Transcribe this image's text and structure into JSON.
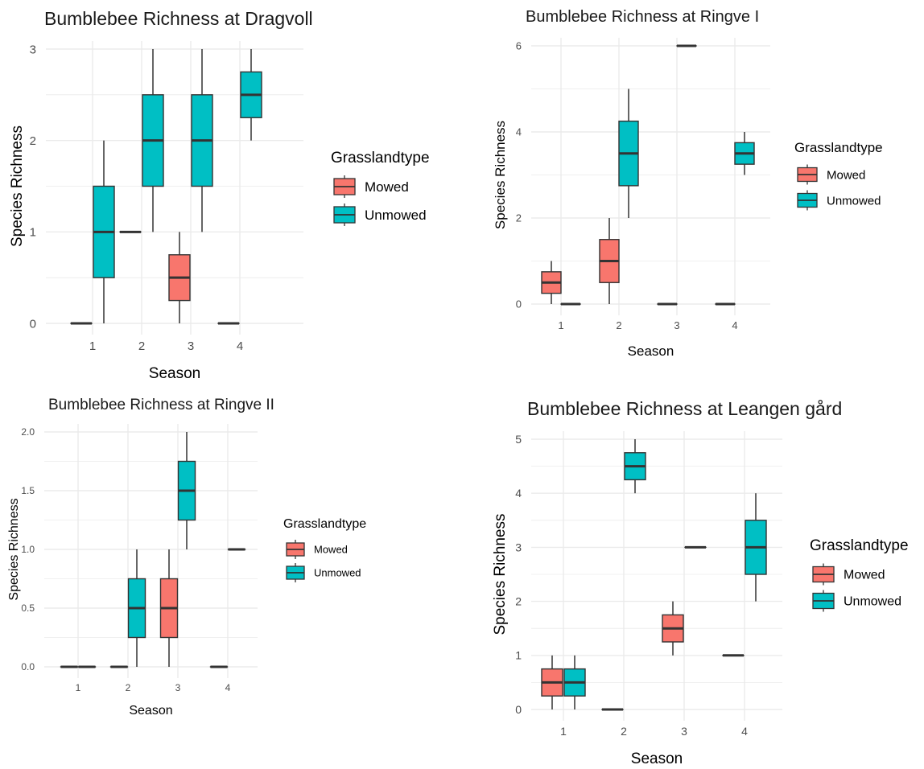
{
  "colors": {
    "mowed": "#F8766D",
    "unmowed": "#00BFC4",
    "grid": "#EBEBEB",
    "line": "#333333"
  },
  "chart_data": [
    {
      "type": "box",
      "title": "Bumblebee Richness at Dragvoll",
      "xlabel": "Season",
      "ylabel": "Species Richness",
      "ylim": [
        0,
        3
      ],
      "yticks": [
        "0",
        "1",
        "2",
        "3"
      ],
      "categories": [
        "1",
        "2",
        "3",
        "4"
      ],
      "legend_title": "Grasslandtype",
      "legend_position": "right",
      "series": [
        {
          "name": "Mowed",
          "boxes": [
            {
              "season": "1",
              "min": 0,
              "q1": 0,
              "median": 0,
              "q3": 0,
              "max": 0
            },
            {
              "season": "2",
              "min": 1,
              "q1": 1,
              "median": 1,
              "q3": 1,
              "max": 1
            },
            {
              "season": "3",
              "min": 0,
              "q1": 0.25,
              "median": 0.5,
              "q3": 0.75,
              "max": 1
            },
            {
              "season": "4",
              "min": 0,
              "q1": 0,
              "median": 0,
              "q3": 0,
              "max": 0
            }
          ]
        },
        {
          "name": "Unmowed",
          "boxes": [
            {
              "season": "1",
              "min": 0,
              "q1": 0.5,
              "median": 1,
              "q3": 1.5,
              "max": 2
            },
            {
              "season": "2",
              "min": 1,
              "q1": 1.5,
              "median": 2,
              "q3": 2.5,
              "max": 3
            },
            {
              "season": "3",
              "min": 1,
              "q1": 1.5,
              "median": 2,
              "q3": 2.5,
              "max": 3
            },
            {
              "season": "4",
              "min": 2,
              "q1": 2.25,
              "median": 2.5,
              "q3": 2.75,
              "max": 3
            }
          ]
        }
      ]
    },
    {
      "type": "box",
      "title": "Bumblebee Richness at Ringve I",
      "xlabel": "Season",
      "ylabel": "Species Richness",
      "ylim": [
        0,
        6
      ],
      "yticks": [
        "0",
        "2",
        "4",
        "6"
      ],
      "categories": [
        "1",
        "2",
        "3",
        "4"
      ],
      "legend_title": "Grasslandtype",
      "legend_position": "right",
      "series": [
        {
          "name": "Mowed",
          "boxes": [
            {
              "season": "1",
              "min": 0,
              "q1": 0.25,
              "median": 0.5,
              "q3": 0.75,
              "max": 1
            },
            {
              "season": "2",
              "min": 0,
              "q1": 0.5,
              "median": 1,
              "q3": 1.5,
              "max": 2
            }
          ]
        },
        {
          "name": "Unmowed",
          "boxes": [
            {
              "season": "1",
              "min": 0,
              "q1": 0,
              "median": 0,
              "q3": 0,
              "max": 0
            },
            {
              "season": "2",
              "min": 2,
              "q1": 2.75,
              "median": 3.5,
              "q3": 4.25,
              "max": 5
            },
            {
              "season": "3",
              "min": 6,
              "q1": 6,
              "median": 6,
              "q3": 6,
              "max": 6
            },
            {
              "season": "4",
              "min": 3,
              "q1": 3.25,
              "median": 3.5,
              "q3": 3.75,
              "max": 4
            }
          ]
        },
        {
          "name": "Mowed",
          "boxes": [
            {
              "season": "3",
              "min": 0,
              "q1": 0,
              "median": 0,
              "q3": 0,
              "max": 0
            },
            {
              "season": "4",
              "min": 0,
              "q1": 0,
              "median": 0,
              "q3": 0,
              "max": 0
            }
          ]
        }
      ]
    },
    {
      "type": "box",
      "title": "Bumblebee Richness at Ringve II",
      "xlabel": "Season",
      "ylabel": "Species Richness",
      "ylim": [
        0,
        2
      ],
      "yticks": [
        "0.0",
        "0.5",
        "1.0",
        "1.5",
        "2.0"
      ],
      "categories": [
        "1",
        "2",
        "3",
        "4"
      ],
      "legend_title": "Grasslandtype",
      "legend_position": "right",
      "series": [
        {
          "name": "Mowed",
          "boxes": [
            {
              "season": "1",
              "min": 0,
              "q1": 0,
              "median": 0,
              "q3": 0,
              "max": 0
            },
            {
              "season": "2",
              "min": 0,
              "q1": 0,
              "median": 0,
              "q3": 0,
              "max": 0
            },
            {
              "season": "3",
              "min": 0,
              "q1": 0.25,
              "median": 0.5,
              "q3": 0.75,
              "max": 1
            },
            {
              "season": "4",
              "min": 0,
              "q1": 0,
              "median": 0,
              "q3": 0,
              "max": 0
            }
          ]
        },
        {
          "name": "Unmowed",
          "boxes": [
            {
              "season": "1",
              "min": 0,
              "q1": 0,
              "median": 0,
              "q3": 0,
              "max": 0
            },
            {
              "season": "2",
              "min": 0,
              "q1": 0.25,
              "median": 0.5,
              "q3": 0.75,
              "max": 1
            },
            {
              "season": "3",
              "min": 1,
              "q1": 1.25,
              "median": 1.5,
              "q3": 1.75,
              "max": 2
            },
            {
              "season": "4",
              "min": 1,
              "q1": 1,
              "median": 1,
              "q3": 1,
              "max": 1
            }
          ]
        }
      ]
    },
    {
      "type": "box",
      "title": "Bumblebee Richness at Leangen gård",
      "xlabel": "Season",
      "ylabel": "Species Richness",
      "ylim": [
        0,
        5
      ],
      "yticks": [
        "0",
        "1",
        "2",
        "3",
        "4",
        "5"
      ],
      "categories": [
        "1",
        "2",
        "3",
        "4"
      ],
      "legend_title": "Grasslandtype",
      "legend_position": "right",
      "series": [
        {
          "name": "Mowed",
          "boxes": [
            {
              "season": "1",
              "min": 0,
              "q1": 0.25,
              "median": 0.5,
              "q3": 0.75,
              "max": 1
            },
            {
              "season": "2",
              "min": 0,
              "q1": 0,
              "median": 0,
              "q3": 0,
              "max": 0
            },
            {
              "season": "3",
              "min": 1,
              "q1": 1.25,
              "median": 1.5,
              "q3": 1.75,
              "max": 2
            },
            {
              "season": "4",
              "min": 1,
              "q1": 1,
              "median": 1,
              "q3": 1,
              "max": 1
            }
          ]
        },
        {
          "name": "Unmowed",
          "boxes": [
            {
              "season": "1",
              "min": 0,
              "q1": 0.25,
              "median": 0.5,
              "q3": 0.75,
              "max": 1
            },
            {
              "season": "2",
              "min": 4,
              "q1": 4.25,
              "median": 4.5,
              "q3": 4.75,
              "max": 5
            },
            {
              "season": "3",
              "min": 3,
              "q1": 3,
              "median": 3,
              "q3": 3,
              "max": 3
            },
            {
              "season": "4",
              "min": 2,
              "q1": 2.5,
              "median": 3,
              "q3": 3.5,
              "max": 4
            }
          ]
        }
      ]
    }
  ]
}
